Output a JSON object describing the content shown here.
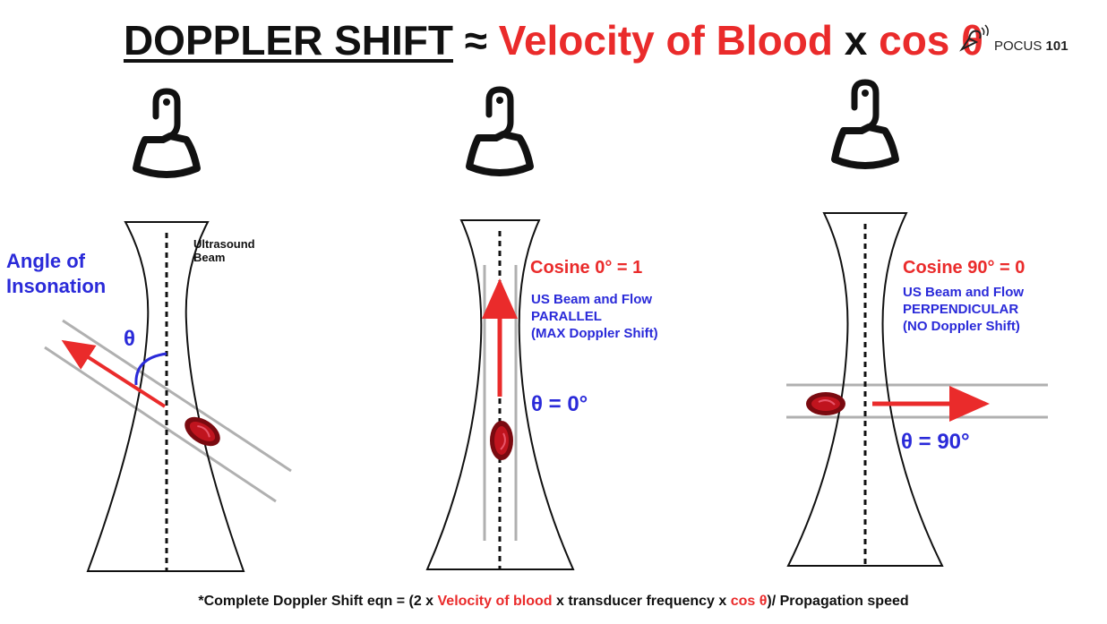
{
  "title": {
    "part1": "DOPPLER SHIFT",
    "approx": " ≈ ",
    "part2": "Velocity of Blood",
    "times": " x ",
    "part3": "cos θ"
  },
  "logo": {
    "text": "POCUS",
    "number": "101"
  },
  "panel1": {
    "angle_label_line1": "Angle of",
    "angle_label_line2": "Insonation",
    "beam_label_line1": "Ultrasound",
    "beam_label_line2": "Beam",
    "theta_symbol": "θ"
  },
  "panel2": {
    "cosine": "Cosine 0° = 1",
    "desc_line1": "US Beam and Flow",
    "desc_line2": "PARALLEL",
    "desc_line3": "(MAX Doppler Shift)",
    "theta_eq": "θ = 0°"
  },
  "panel3": {
    "cosine": "Cosine 90° = 0",
    "desc_line1": "US Beam and Flow",
    "desc_line2": "PERPENDICULAR",
    "desc_line3": "(NO Doppler Shift)",
    "theta_eq": "θ = 90°"
  },
  "footer": {
    "a": "*Complete Doppler Shift eqn = (2 x ",
    "b": "Velocity of blood",
    "c": " x transducer frequency x ",
    "d": "cos θ",
    "e": ")/ Propagation speed"
  },
  "colors": {
    "red": "#ea2b2b",
    "blue": "#2a2ad9",
    "cell_dark": "#7a0a10",
    "vessel": "#b0b0b0"
  }
}
